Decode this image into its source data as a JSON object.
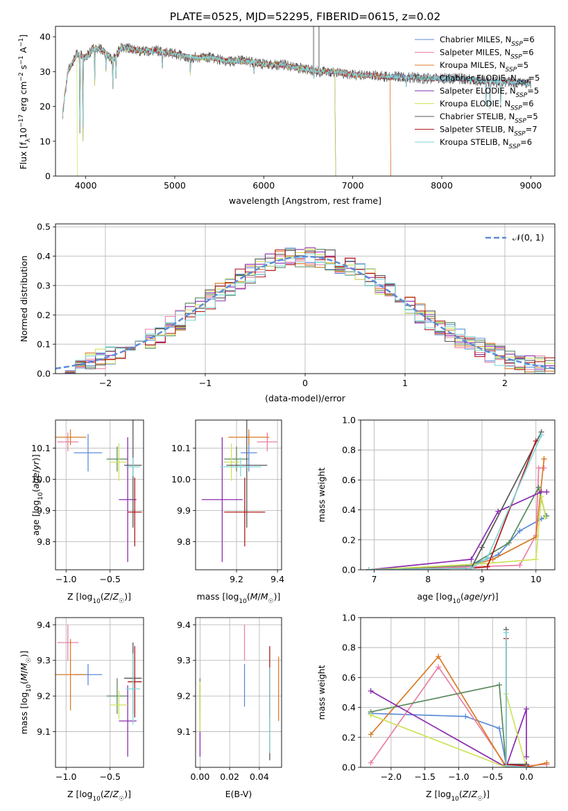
{
  "figure_title": "PLATE=0525, MJD=52295, FIBERID=0615, z=0.02",
  "colors": {
    "Chabrier MILES": "#5b8bd9",
    "Salpeter MILES": "#e97fa6",
    "Kroupa MILES": "#d97a26",
    "Chabrier ELODIE": "#5a8a5e",
    "Salpeter ELODIE": "#8a2bb0",
    "Kroupa ELODIE": "#cfe25a",
    "Chabrier STELIB": "#555555",
    "Salpeter STELIB": "#b01818",
    "Kroupa STELIB": "#7fd6d8"
  },
  "chart_data": [
    {
      "id": "spectrum",
      "type": "line",
      "title": "PLATE=0525, MJD=52295, FIBERID=0615, z=0.02",
      "xlabel": "wavelength [Angstrom, rest frame]",
      "ylabel": "Flux [f_λ 10^-17 erg cm^-2 s^-1 A^-1]",
      "xlim": [
        3660,
        9270
      ],
      "ylim": [
        0,
        43
      ],
      "xticks": [
        4000,
        5000,
        6000,
        7000,
        8000,
        9000
      ],
      "yticks": [
        0,
        10,
        20,
        30,
        40
      ],
      "legend_placement": "top-right",
      "data_points": [
        [
          3740,
          18
        ],
        [
          3800,
          30
        ],
        [
          3900,
          35
        ],
        [
          4000,
          34
        ],
        [
          4100,
          37
        ],
        [
          4200,
          36
        ],
        [
          4300,
          33
        ],
        [
          4400,
          37
        ],
        [
          4600,
          36
        ],
        [
          4800,
          36
        ],
        [
          5000,
          35
        ],
        [
          5200,
          34
        ],
        [
          5400,
          34
        ],
        [
          5600,
          33
        ],
        [
          5800,
          33
        ],
        [
          6000,
          32
        ],
        [
          6200,
          32
        ],
        [
          6400,
          31
        ],
        [
          6600,
          30
        ],
        [
          6800,
          30
        ],
        [
          7000,
          29
        ],
        [
          7200,
          29
        ],
        [
          7400,
          28.5
        ],
        [
          7600,
          28.5
        ],
        [
          7800,
          28
        ],
        [
          8000,
          28
        ],
        [
          8200,
          28
        ],
        [
          8400,
          27.5
        ],
        [
          8600,
          27
        ],
        [
          8800,
          27
        ],
        [
          9000,
          26.5
        ]
      ],
      "absorption_features": [
        [
          3934,
          8
        ],
        [
          3969,
          10
        ],
        [
          4101,
          26
        ],
        [
          4227,
          30
        ],
        [
          4304,
          25
        ],
        [
          4340,
          28
        ],
        [
          4861,
          30
        ],
        [
          5175,
          29
        ],
        [
          5890,
          29
        ],
        [
          6563,
          28
        ],
        [
          7600,
          25
        ],
        [
          8498,
          20
        ],
        [
          8542,
          18
        ],
        [
          8662,
          19
        ]
      ],
      "series": [
        {
          "name": "Chabrier MILES, N_SSP=6",
          "wmin": 3740,
          "wmax": 9000
        },
        {
          "name": "Salpeter MILES, N_SSP=6",
          "wmin": 3740,
          "wmax": 7420
        },
        {
          "name": "Kroupa MILES, N_SSP=5",
          "wmin": 3740,
          "wmax": 7420
        },
        {
          "name": "Chabrier ELODIE, N_SSP=5",
          "wmin": 3900,
          "wmax": 6800
        },
        {
          "name": "Salpeter ELODIE, N_SSP=5",
          "wmin": 3900,
          "wmax": 6800
        },
        {
          "name": "Kroupa ELODIE, N_SSP=6",
          "wmin": 3900,
          "wmax": 6800
        },
        {
          "name": "Chabrier STELIB, N_SSP=5",
          "wmin": 3740,
          "wmax": 9000
        },
        {
          "name": "Salpeter STELIB, N_SSP=7",
          "wmin": 3740,
          "wmax": 9000
        },
        {
          "name": "Kroupa STELIB, N_SSP=6",
          "wmin": 3740,
          "wmax": 9000
        }
      ]
    },
    {
      "id": "residuals",
      "type": "area",
      "xlabel": "(data-model)/error",
      "ylabel": "Normed distribution",
      "xlim": [
        -2.5,
        2.5
      ],
      "ylim": [
        0,
        0.51
      ],
      "xticks": [
        -2,
        -1,
        0,
        1,
        2
      ],
      "yticks": [
        0.0,
        0.1,
        0.2,
        0.3,
        0.4,
        0.5
      ],
      "bin_width": 0.1,
      "legend_placement": "top-right",
      "reference_label": "𝒩(0, 1)",
      "reference_color": "#5b8bd9",
      "grid": true
    },
    {
      "id": "age-vs-Z",
      "type": "scatter",
      "xlabel": "Z [log10(Z/Z☉)]",
      "ylabel": "age [log10(age/yr)]",
      "xlim": [
        -1.12,
        -0.12
      ],
      "ylim": [
        9.71,
        10.19
      ],
      "xticks": [
        -1.0,
        -0.5
      ],
      "yticks": [
        9.8,
        9.9,
        10.0,
        10.1
      ],
      "points": [
        {
          "model": "Chabrier MILES",
          "x": -0.75,
          "y": 10.085,
          "xerr": 0.16,
          "yerr": 0.06
        },
        {
          "model": "Salpeter MILES",
          "x": -0.98,
          "y": 10.12,
          "xerr": 0.12,
          "yerr": 0.03
        },
        {
          "model": "Kroupa MILES",
          "x": -0.95,
          "y": 10.135,
          "xerr": 0.18,
          "yerr": 0.025
        },
        {
          "model": "Chabrier ELODIE",
          "x": -0.42,
          "y": 10.065,
          "xerr": 0.12,
          "yerr": 0.04
        },
        {
          "model": "Salpeter ELODIE",
          "x": -0.3,
          "y": 9.935,
          "xerr": 0.1,
          "yerr": 0.2
        },
        {
          "model": "Kroupa ELODIE",
          "x": -0.4,
          "y": 10.055,
          "xerr": 0.1,
          "yerr": 0.06
        },
        {
          "model": "Chabrier STELIB",
          "x": -0.24,
          "y": 10.045,
          "xerr": 0.1,
          "yerr": 0.2
        },
        {
          "model": "Salpeter STELIB",
          "x": -0.22,
          "y": 9.895,
          "xerr": 0.08,
          "yerr": 0.11
        },
        {
          "model": "Kroupa STELIB",
          "x": -0.24,
          "y": 10.04,
          "xerr": 0.08,
          "yerr": 0.03
        }
      ]
    },
    {
      "id": "age-vs-mass",
      "type": "scatter",
      "xlabel": "mass [log10(M/M☉)]",
      "ylabel": "",
      "xlim": [
        9.0,
        9.42
      ],
      "ylim": [
        9.71,
        10.19
      ],
      "xticks": [
        9.2,
        9.4
      ],
      "yticks": [
        9.8,
        9.9,
        10.0,
        10.1
      ],
      "points": [
        {
          "model": "Chabrier MILES",
          "x": 9.26,
          "y": 10.085,
          "xerr": 0.04,
          "yerr": 0.06
        },
        {
          "model": "Salpeter MILES",
          "x": 9.35,
          "y": 10.12,
          "xerr": 0.05,
          "yerr": 0.03
        },
        {
          "model": "Kroupa MILES",
          "x": 9.26,
          "y": 10.135,
          "xerr": 0.1,
          "yerr": 0.025
        },
        {
          "model": "Chabrier ELODIE",
          "x": 9.2,
          "y": 10.065,
          "xerr": 0.06,
          "yerr": 0.04
        },
        {
          "model": "Salpeter ELODIE",
          "x": 9.13,
          "y": 9.935,
          "xerr": 0.1,
          "yerr": 0.2
        },
        {
          "model": "Kroupa ELODIE",
          "x": 9.175,
          "y": 10.055,
          "xerr": 0.04,
          "yerr": 0.06
        },
        {
          "model": "Chabrier STELIB",
          "x": 9.25,
          "y": 10.045,
          "xerr": 0.1,
          "yerr": 0.2
        },
        {
          "model": "Salpeter STELIB",
          "x": 9.24,
          "y": 9.895,
          "xerr": 0.1,
          "yerr": 0.11
        },
        {
          "model": "Kroupa STELIB",
          "x": 9.22,
          "y": 10.04,
          "xerr": 0.1,
          "yerr": 0.03
        }
      ]
    },
    {
      "id": "weight-vs-age",
      "type": "line",
      "xlabel": "age [log10(age/yr)]",
      "ylabel": "mass weight",
      "xlim": [
        6.75,
        10.35
      ],
      "ylim": [
        0,
        1
      ],
      "xticks": [
        7,
        8,
        9,
        10
      ],
      "yticks": [
        0.0,
        0.2,
        0.4,
        0.6,
        0.8,
        1.0
      ],
      "series": [
        {
          "model": "Chabrier MILES",
          "x": [
            6.9,
            7.6,
            8.7,
            9.3,
            9.7,
            10.1,
            10.2
          ],
          "y": [
            0.0,
            0.0,
            0.02,
            0.1,
            0.26,
            0.34,
            0.36
          ]
        },
        {
          "model": "Salpeter MILES",
          "x": [
            6.9,
            8.8,
            9.7,
            10.0,
            10.05,
            10.15
          ],
          "y": [
            0.0,
            0.02,
            0.03,
            0.23,
            0.68,
            0.68
          ]
        },
        {
          "model": "Kroupa MILES",
          "x": [
            6.9,
            8.8,
            9.2,
            10.0,
            10.15,
            10.15
          ],
          "y": [
            0.0,
            0.03,
            0.07,
            0.22,
            0.74,
            0.74
          ]
        },
        {
          "model": "Chabrier ELODIE",
          "x": [
            6.9,
            8.8,
            9.5,
            10.05,
            10.18
          ],
          "y": [
            0.0,
            0.03,
            0.18,
            0.55,
            0.36
          ]
        },
        {
          "model": "Salpeter ELODIE",
          "x": [
            6.9,
            8.8,
            9.3,
            10.1,
            10.2
          ],
          "y": [
            0.0,
            0.07,
            0.39,
            0.52,
            0.52
          ]
        },
        {
          "model": "Kroupa ELODIE",
          "x": [
            6.9,
            9.0,
            10.0,
            10.1,
            10.18
          ],
          "y": [
            0.0,
            0.04,
            0.07,
            0.49,
            0.35
          ]
        },
        {
          "model": "Chabrier STELIB",
          "x": [
            6.9,
            8.8,
            9.0,
            10.1
          ],
          "y": [
            0.0,
            0.01,
            0.15,
            0.92
          ]
        },
        {
          "model": "Salpeter STELIB",
          "x": [
            6.9,
            8.8,
            9.1,
            10.0
          ],
          "y": [
            0.0,
            0.01,
            0.02,
            0.86
          ]
        },
        {
          "model": "Kroupa STELIB",
          "x": [
            6.9,
            8.8,
            9.1,
            10.1
          ],
          "y": [
            0.0,
            0.01,
            0.08,
            0.9
          ]
        }
      ]
    },
    {
      "id": "mass-vs-Z",
      "type": "scatter",
      "xlabel": "Z [log10(Z/Z☉)]",
      "ylabel": "mass [log10(M/M☉)]",
      "xlim": [
        -1.12,
        -0.12
      ],
      "ylim": [
        9.0,
        9.42
      ],
      "xticks": [
        -1.0,
        -0.5
      ],
      "yticks": [
        9.1,
        9.2,
        9.3,
        9.4
      ],
      "points": [
        {
          "model": "Chabrier MILES",
          "x": -0.75,
          "y": 9.26,
          "xerr": 0.16,
          "yerr": 0.03
        },
        {
          "model": "Salpeter MILES",
          "x": -0.98,
          "y": 9.35,
          "xerr": 0.12,
          "yerr": 0.05
        },
        {
          "model": "Kroupa MILES",
          "x": -0.95,
          "y": 9.26,
          "xerr": 0.18,
          "yerr": 0.1
        },
        {
          "model": "Chabrier ELODIE",
          "x": -0.42,
          "y": 9.2,
          "xerr": 0.12,
          "yerr": 0.05
        },
        {
          "model": "Salpeter ELODIE",
          "x": -0.3,
          "y": 9.13,
          "xerr": 0.1,
          "yerr": 0.1
        },
        {
          "model": "Kroupa ELODIE",
          "x": -0.4,
          "y": 9.175,
          "xerr": 0.1,
          "yerr": 0.04
        },
        {
          "model": "Chabrier STELIB",
          "x": -0.24,
          "y": 9.25,
          "xerr": 0.1,
          "yerr": 0.1
        },
        {
          "model": "Salpeter STELIB",
          "x": -0.22,
          "y": 9.24,
          "xerr": 0.08,
          "yerr": 0.1
        },
        {
          "model": "Kroupa STELIB",
          "x": -0.24,
          "y": 9.22,
          "xerr": 0.08,
          "yerr": 0.1
        }
      ]
    },
    {
      "id": "mass-vs-ebv",
      "type": "scatter",
      "xlabel": "E(B-V)",
      "ylabel": "",
      "xlim": [
        -0.003,
        0.055
      ],
      "ylim": [
        9.0,
        9.42
      ],
      "xticks": [
        0.0,
        0.02,
        0.04
      ],
      "yticks": [
        9.1,
        9.2,
        9.3,
        9.4
      ],
      "points": [
        {
          "model": "Chabrier MILES",
          "x": 0.03,
          "y": 9.23,
          "yerr": 0.06
        },
        {
          "model": "Salpeter MILES",
          "x": 0.03,
          "y": 9.35,
          "yerr": 0.05
        },
        {
          "model": "Kroupa MILES",
          "x": 0.053,
          "y": 9.22,
          "yerr": 0.09
        },
        {
          "model": "Chabrier ELODIE",
          "x": 0.0,
          "y": 9.2,
          "yerr": 0.05
        },
        {
          "model": "Salpeter ELODIE",
          "x": 0.0,
          "y": 9.13,
          "yerr": 0.1
        },
        {
          "model": "Kroupa ELODIE",
          "x": 0.0,
          "y": 9.17,
          "yerr": 0.07
        },
        {
          "model": "Chabrier STELIB",
          "x": 0.047,
          "y": 9.15,
          "yerr": 0.13
        },
        {
          "model": "Salpeter STELIB",
          "x": 0.047,
          "y": 9.24,
          "yerr": 0.1
        },
        {
          "model": "Kroupa STELIB",
          "x": 0.047,
          "y": 9.16,
          "yerr": 0.12
        }
      ]
    },
    {
      "id": "weight-vs-Z",
      "type": "line",
      "xlabel": "Z [log10(Z/Z☉)]",
      "ylabel": "mass weight",
      "xlim": [
        -2.45,
        0.42
      ],
      "ylim": [
        0,
        1
      ],
      "xticks": [
        -2.0,
        -1.5,
        -1.0,
        -0.5,
        0.0
      ],
      "yticks": [
        0.0,
        0.2,
        0.4,
        0.6,
        0.8,
        1.0
      ],
      "series": [
        {
          "model": "Chabrier MILES",
          "x": [
            -2.3,
            -0.9,
            -0.4,
            -0.3,
            0.0
          ],
          "y": [
            0.36,
            0.34,
            0.26,
            0.02,
            0.02
          ]
        },
        {
          "model": "Salpeter MILES",
          "x": [
            -2.3,
            -1.3,
            -0.3,
            0.0,
            0.3
          ],
          "y": [
            0.03,
            0.67,
            0.01,
            0.01,
            0.02
          ]
        },
        {
          "model": "Kroupa MILES",
          "x": [
            -2.3,
            -1.3,
            -0.3,
            0.0,
            0.3
          ],
          "y": [
            0.22,
            0.74,
            0.0,
            0.0,
            0.03
          ]
        },
        {
          "model": "Chabrier ELODIE",
          "x": [
            -2.3,
            -0.4,
            -0.3
          ],
          "y": [
            0.37,
            0.55,
            0.0
          ]
        },
        {
          "model": "Salpeter ELODIE",
          "x": [
            -2.3,
            -0.3,
            0.0,
            0.0
          ],
          "y": [
            0.51,
            0.0,
            0.39,
            0.07
          ]
        },
        {
          "model": "Kroupa ELODIE",
          "x": [
            -2.3,
            -0.3,
            -0.3,
            0.0
          ],
          "y": [
            0.35,
            0.0,
            0.49,
            0.0
          ]
        },
        {
          "model": "Chabrier STELIB",
          "x": [
            -0.3,
            -0.3,
            0.0
          ],
          "y": [
            0.92,
            0.02,
            0.02
          ]
        },
        {
          "model": "Salpeter STELIB",
          "x": [
            -0.3,
            -0.3,
            0.0
          ],
          "y": [
            0.86,
            0.02,
            0.01
          ]
        },
        {
          "model": "Kroupa STELIB",
          "x": [
            -0.3,
            -0.3,
            0.0
          ],
          "y": [
            0.9,
            0.01,
            0.0
          ]
        }
      ]
    }
  ]
}
